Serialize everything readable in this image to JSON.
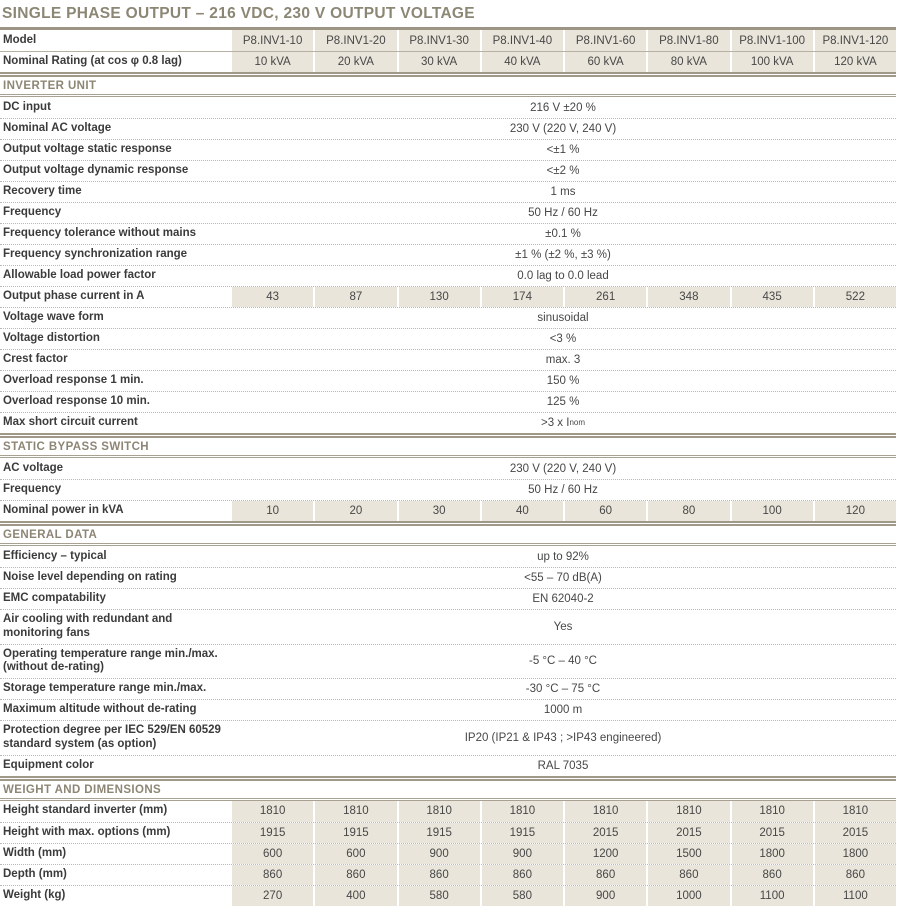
{
  "title": "SINGLE PHASE OUTPUT – 216 VDC, 230 V OUTPUT VOLTAGE",
  "colors": {
    "title_text": "#8c8675",
    "section_text": "#8d8675",
    "cell_shade": "#e9e5da",
    "rule": "#9c9586",
    "label_text": "#3b3b3b",
    "value_text": "#474747"
  },
  "header": {
    "model_label": "Model",
    "models": [
      "P8.INV1-10",
      "P8.INV1-20",
      "P8.INV1-30",
      "P8.INV1-40",
      "P8.INV1-60",
      "P8.INV1-80",
      "P8.INV1-100",
      "P8.INV1-120"
    ],
    "rating_label": "Nominal Rating (at cos φ 0.8 lag)",
    "ratings": [
      "10 kVA",
      "20 kVA",
      "30 kVA",
      "40 kVA",
      "60 kVA",
      "80 kVA",
      "100 kVA",
      "120 kVA"
    ]
  },
  "sections": [
    {
      "name": "INVERTER UNIT",
      "rows": [
        {
          "label": "DC input",
          "value": "216 V ±20 %"
        },
        {
          "label": "Nominal AC voltage",
          "value": "230 V (220 V, 240 V)"
        },
        {
          "label": "Output voltage static response",
          "value": "<±1 %"
        },
        {
          "label": "Output voltage dynamic response",
          "value": "<±2 %"
        },
        {
          "label": "Recovery time",
          "value": "1 ms"
        },
        {
          "label": "Frequency",
          "value": "50 Hz / 60 Hz"
        },
        {
          "label": "Frequency tolerance without mains",
          "value": "±0.1 %"
        },
        {
          "label": "Frequency synchronization range",
          "value": "±1 % (±2 %, ±3 %)"
        },
        {
          "label": "Allowable load power factor",
          "value": "0.0 lag to 0.0 lead"
        },
        {
          "label": "Output phase current in A",
          "values": [
            "43",
            "87",
            "130",
            "174",
            "261",
            "348",
            "435",
            "522"
          ]
        },
        {
          "label": "Voltage wave form",
          "value": "sinusoidal"
        },
        {
          "label": "Voltage distortion",
          "value": "<3 %"
        },
        {
          "label": "Crest factor",
          "value": "max. 3"
        },
        {
          "label": "Overload response 1 min.",
          "value": "150 %"
        },
        {
          "label": "Overload response 10 min.",
          "value": "125 %"
        },
        {
          "label": "Max short circuit current",
          "value": ">3 x I",
          "value_sub": "nom"
        }
      ]
    },
    {
      "name": "STATIC BYPASS SWITCH",
      "rows": [
        {
          "label": "AC voltage",
          "value": "230 V (220 V, 240 V)"
        },
        {
          "label": "Frequency",
          "value": "50 Hz / 60 Hz"
        },
        {
          "label": "Nominal power in kVA",
          "values": [
            "10",
            "20",
            "30",
            "40",
            "60",
            "80",
            "100",
            "120"
          ]
        }
      ]
    },
    {
      "name": "GENERAL DATA",
      "rows": [
        {
          "label": "Efficiency – typical",
          "value": "up to 92%"
        },
        {
          "label": "Noise level depending on rating",
          "value": "<55 – 70 dB(A)"
        },
        {
          "label": "EMC compatability",
          "value": "EN 62040-2"
        },
        {
          "label": "Air cooling with redundant and monitoring fans",
          "value": "Yes"
        },
        {
          "label": "Operating temperature range min./max. (without de-rating)",
          "value": "-5 °C – 40 °C"
        },
        {
          "label": "Storage temperature range min./max.",
          "value": "-30 °C – 75 °C"
        },
        {
          "label": "Maximum altitude without de-rating",
          "value": "1000 m"
        },
        {
          "label": "Protection degree per IEC 529/EN 60529 standard system (as option)",
          "value": "IP20 (IP21 & IP43 ; >IP43 engineered)"
        },
        {
          "label": "Equipment color",
          "value": "RAL 7035"
        }
      ]
    },
    {
      "name": "WEIGHT AND DIMENSIONS",
      "rows": [
        {
          "label": "Height standard inverter (mm)",
          "values": [
            "1810",
            "1810",
            "1810",
            "1810",
            "1810",
            "1810",
            "1810",
            "1810"
          ]
        },
        {
          "label": "Height with max. options (mm)",
          "values": [
            "1915",
            "1915",
            "1915",
            "1915",
            "2015",
            "2015",
            "2015",
            "2015"
          ]
        },
        {
          "label": "Width (mm)",
          "values": [
            "600",
            "600",
            "900",
            "900",
            "1200",
            "1500",
            "1800",
            "1800"
          ]
        },
        {
          "label": "Depth (mm)",
          "values": [
            "860",
            "860",
            "860",
            "860",
            "860",
            "860",
            "860",
            "860"
          ]
        },
        {
          "label": "Weight (kg)",
          "values": [
            "270",
            "400",
            "580",
            "580",
            "900",
            "1000",
            "1100",
            "1100"
          ]
        }
      ]
    }
  ]
}
